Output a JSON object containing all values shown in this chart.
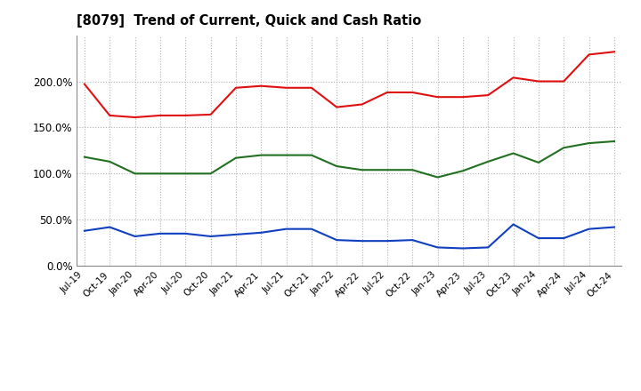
{
  "title": "[8079]  Trend of Current, Quick and Cash Ratio",
  "x_labels": [
    "Jul-19",
    "Oct-19",
    "Jan-20",
    "Apr-20",
    "Jul-20",
    "Oct-20",
    "Jan-21",
    "Apr-21",
    "Jul-21",
    "Oct-21",
    "Jan-22",
    "Apr-22",
    "Jul-22",
    "Oct-22",
    "Jan-23",
    "Apr-23",
    "Jul-23",
    "Oct-23",
    "Jan-24",
    "Apr-24",
    "Jul-24",
    "Oct-24"
  ],
  "current_ratio": [
    197,
    163,
    161,
    163,
    163,
    164,
    193,
    195,
    193,
    193,
    172,
    175,
    188,
    188,
    183,
    183,
    185,
    204,
    200,
    200,
    229,
    232
  ],
  "quick_ratio": [
    118,
    113,
    100,
    100,
    100,
    100,
    117,
    120,
    120,
    120,
    108,
    104,
    104,
    104,
    96,
    103,
    113,
    122,
    112,
    128,
    133,
    135
  ],
  "cash_ratio": [
    38,
    42,
    32,
    35,
    35,
    32,
    34,
    36,
    40,
    40,
    28,
    27,
    27,
    28,
    20,
    19,
    20,
    45,
    30,
    30,
    40,
    42
  ],
  "current_color": "#e01010",
  "quick_color": "#207020",
  "cash_color": "#1040c0",
  "ylim": [
    0,
    250
  ],
  "yticks": [
    0,
    50,
    100,
    150,
    200
  ],
  "bg_color": "#ffffff",
  "grid_color": "#b0b0b0"
}
